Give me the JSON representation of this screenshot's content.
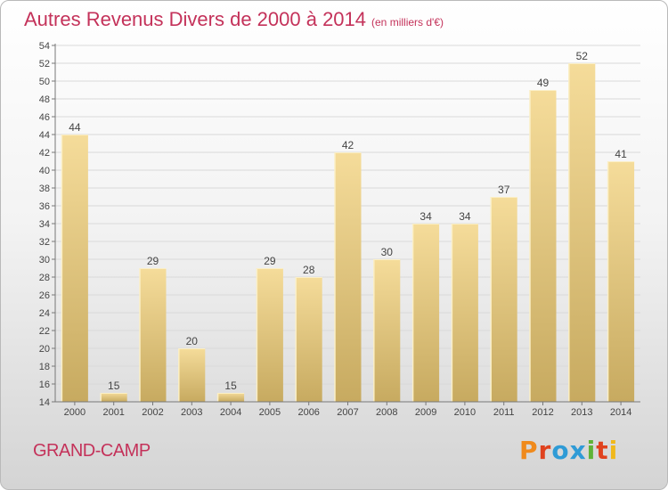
{
  "header": {
    "title": "Autres Revenus Divers de 2000 à 2014",
    "subtitle": "(en milliers d'€)"
  },
  "footer": {
    "place": "GRAND-CAMP",
    "brand": "Proxiti",
    "brand_colors": [
      "#f08a1c",
      "#e0421e",
      "#2f9bd6",
      "#2f9bd6",
      "#5fb336",
      "#e0421e",
      "#f0b81c"
    ]
  },
  "colors": {
    "title": "#c4325a",
    "bar_top": "#f5dc9a",
    "bar_bottom": "#c7aa60",
    "bar_edge": "#fbefc6"
  },
  "chart_data": {
    "type": "bar",
    "title": "Autres Revenus Divers de 2000 à 2014",
    "subtitle": "(en milliers d'€)",
    "categories": [
      "2000",
      "2001",
      "2002",
      "2003",
      "2004",
      "2005",
      "2006",
      "2007",
      "2008",
      "2009",
      "2010",
      "2011",
      "2012",
      "2013",
      "2014"
    ],
    "values": [
      44,
      15,
      29,
      20,
      15,
      29,
      28,
      42,
      30,
      34,
      34,
      37,
      49,
      52,
      41
    ],
    "ylim": [
      14,
      54
    ],
    "yticks": [
      14,
      16,
      18,
      20,
      22,
      24,
      26,
      28,
      30,
      32,
      34,
      36,
      38,
      40,
      42,
      44,
      46,
      48,
      50,
      52,
      54
    ],
    "grid": "horizontal",
    "data_labels": true
  }
}
